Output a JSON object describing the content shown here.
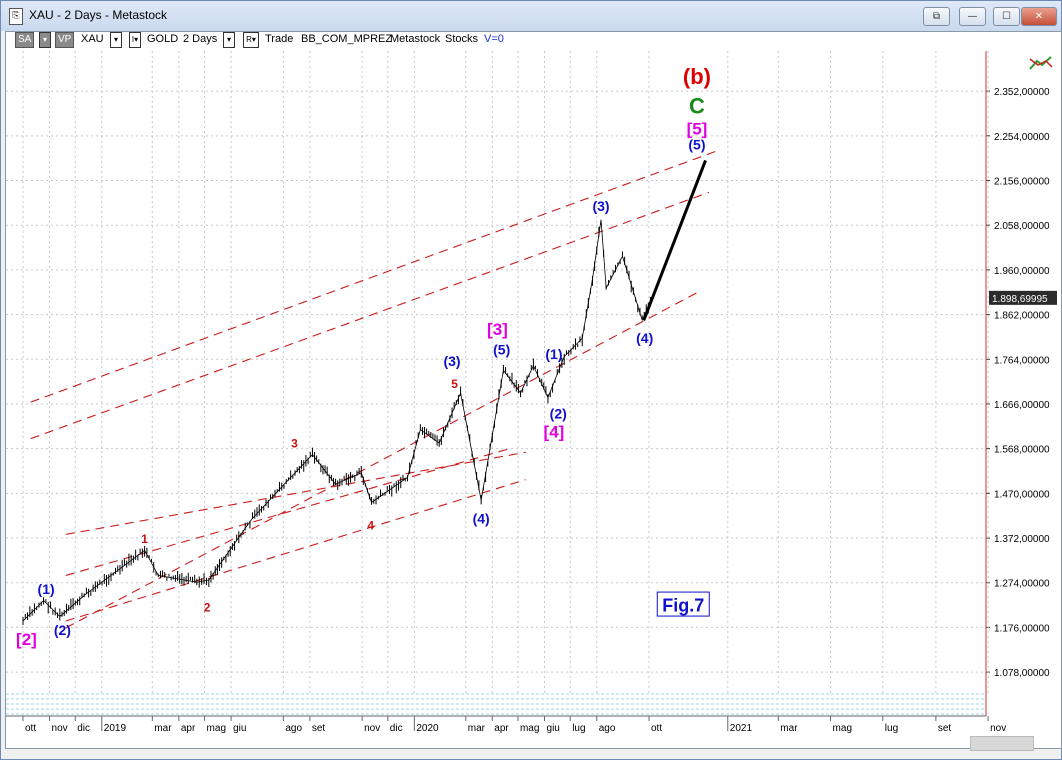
{
  "window": {
    "title": "XAU - 2 Days - Metastock",
    "icon_glyph": "⎘",
    "buttons": [
      "⧉",
      "—",
      "☐",
      "✕"
    ]
  },
  "toolbar": {
    "sa": "SA",
    "vp": "VP",
    "symbol": "XAU",
    "dropdown1": "▾",
    "dropdown2": "I▾",
    "name": "GOLD",
    "period": "2 Days",
    "dropdown3": "▾",
    "r": "R▾",
    "trade": "Trade",
    "template": "BB_COM_MPREZ",
    "source": "Metastock",
    "kind": "Stocks",
    "volume": "V=0"
  },
  "chart_data": {
    "type": "line",
    "title": "",
    "xlabel": "",
    "ylabel": "",
    "x_ticks": [
      "ott",
      "nov",
      "dic",
      "2019",
      "mar",
      "apr",
      "mag",
      "giu",
      "ago",
      "set",
      "nov",
      "dic",
      "2020",
      "mar",
      "apr",
      "mag",
      "giu",
      "lug",
      "ago",
      "ott",
      "2021",
      "mar",
      "mag",
      "lug",
      "set",
      "nov"
    ],
    "y_ticks": [
      "2.352,00000",
      "2.254,00000",
      "2.156,00000",
      "2.058,00000",
      "1.960,00000",
      "1.862,00000",
      "1.764,00000",
      "1.666,00000",
      "1.568,00000",
      "1.470,00000",
      "1.372,00000",
      "1.274,00000",
      "1.176,00000",
      "1.078,00000"
    ],
    "ylim": [
      1030,
      2440
    ],
    "grid": true,
    "last_price": "1.898,69995",
    "series": [
      {
        "type": "price",
        "x": [
          "2018-10-01",
          "2018-10-25",
          "2018-11-13",
          "2018-12-14",
          "2019-02-20",
          "2019-03-08",
          "2019-04-22",
          "2019-05-06",
          "2019-06-20",
          "2019-06-26",
          "2019-08-07",
          "2019-09-04",
          "2019-10-01",
          "2019-10-31",
          "2019-11-12",
          "2019-12-24",
          "2020-01-08",
          "2020-01-30",
          "2020-02-24",
          "2020-03-19",
          "2020-04-14",
          "2020-05-04",
          "2020-05-19",
          "2020-06-05",
          "2020-06-24",
          "2020-07-15",
          "2020-07-27",
          "2020-08-06",
          "2020-08-12",
          "2020-08-31",
          "2020-09-23",
          "2020-10-05"
        ],
        "y": [
          1190,
          1235,
          1200,
          1250,
          1345,
          1290,
          1275,
          1280,
          1400,
          1415,
          1500,
          1555,
          1490,
          1515,
          1450,
          1505,
          1610,
          1580,
          1690,
          1455,
          1740,
          1690,
          1750,
          1680,
          1770,
          1810,
          1940,
          2070,
          1920,
          1990,
          1850,
          1898.7
        ]
      },
      {
        "type": "projection",
        "x": [
          "2020-09-25",
          "2020-12-06"
        ],
        "y": [
          1850,
          2200
        ]
      }
    ],
    "channels": [
      {
        "x": [
          "2018-11-20",
          "2020-12-01"
        ],
        "y": [
          1175,
          1915
        ],
        "dash": true
      },
      {
        "x": [
          "2018-11-20",
          "2020-04-25"
        ],
        "y": [
          1290,
          1570
        ],
        "dash": true
      },
      {
        "x": [
          "2018-11-20",
          "2020-05-10"
        ],
        "y": [
          1380,
          1560
        ],
        "dash": true
      },
      {
        "x": [
          "2018-11-20",
          "2020-05-10"
        ],
        "y": [
          1190,
          1500
        ],
        "dash": true
      },
      {
        "x": [
          "2018-10-10",
          "2020-12-10"
        ],
        "y": [
          1590,
          2130
        ],
        "dash": true
      },
      {
        "x": [
          "2018-10-10",
          "2020-12-18"
        ],
        "y": [
          1670,
          2220
        ],
        "dash": true
      }
    ],
    "annotations": [
      {
        "text": "[2]",
        "x": "2018-10-05",
        "y": 1150,
        "color": "#e000e0"
      },
      {
        "text": "(1)",
        "x": "2018-10-28",
        "y": 1260,
        "color": "#1010cc"
      },
      {
        "text": "(2)",
        "x": "2018-11-16",
        "y": 1170,
        "color": "#1010cc"
      },
      {
        "text": "1",
        "x": "2019-02-20",
        "y": 1370,
        "color": "#cc1010"
      },
      {
        "text": "2",
        "x": "2019-05-04",
        "y": 1220,
        "color": "#cc1010"
      },
      {
        "text": "3",
        "x": "2019-08-14",
        "y": 1580,
        "color": "#cc1010"
      },
      {
        "text": "4",
        "x": "2019-11-11",
        "y": 1400,
        "color": "#cc1010"
      },
      {
        "text": "5",
        "x": "2020-02-17",
        "y": 1710,
        "color": "#cc1010"
      },
      {
        "text": "(3)",
        "x": "2020-02-14",
        "y": 1760,
        "color": "#1010cc"
      },
      {
        "text": "(4)",
        "x": "2020-03-19",
        "y": 1415,
        "color": "#1010cc"
      },
      {
        "text": "[3]",
        "x": "2020-04-07",
        "y": 1830,
        "color": "#e000e0"
      },
      {
        "text": "(5)",
        "x": "2020-04-12",
        "y": 1785,
        "color": "#1010cc"
      },
      {
        "text": "(1)",
        "x": "2020-06-12",
        "y": 1775,
        "color": "#1010cc"
      },
      {
        "text": "(2)",
        "x": "2020-06-17",
        "y": 1645,
        "color": "#1010cc"
      },
      {
        "text": "[4]",
        "x": "2020-06-12",
        "y": 1605,
        "color": "#e000e0"
      },
      {
        "text": "(3)",
        "x": "2020-08-06",
        "y": 2100,
        "color": "#1010cc"
      },
      {
        "text": "(4)",
        "x": "2020-09-26",
        "y": 1810,
        "color": "#1010cc"
      },
      {
        "text": "(5)",
        "x": "2020-11-26",
        "y": 2235,
        "color": "#1010cc"
      },
      {
        "text": "[5]",
        "x": "2020-11-26",
        "y": 2270,
        "color": "#e000e0"
      },
      {
        "text": "C",
        "x": "2020-11-26",
        "y": 2320,
        "color": "#1a8a1a"
      },
      {
        "text": "(b)",
        "x": "2020-11-26",
        "y": 2385,
        "color": "#dd0000"
      },
      {
        "text": "Fig.7",
        "x": "2020-11-10",
        "y": 1225,
        "color": "#1010cc",
        "boxed": true
      }
    ]
  }
}
